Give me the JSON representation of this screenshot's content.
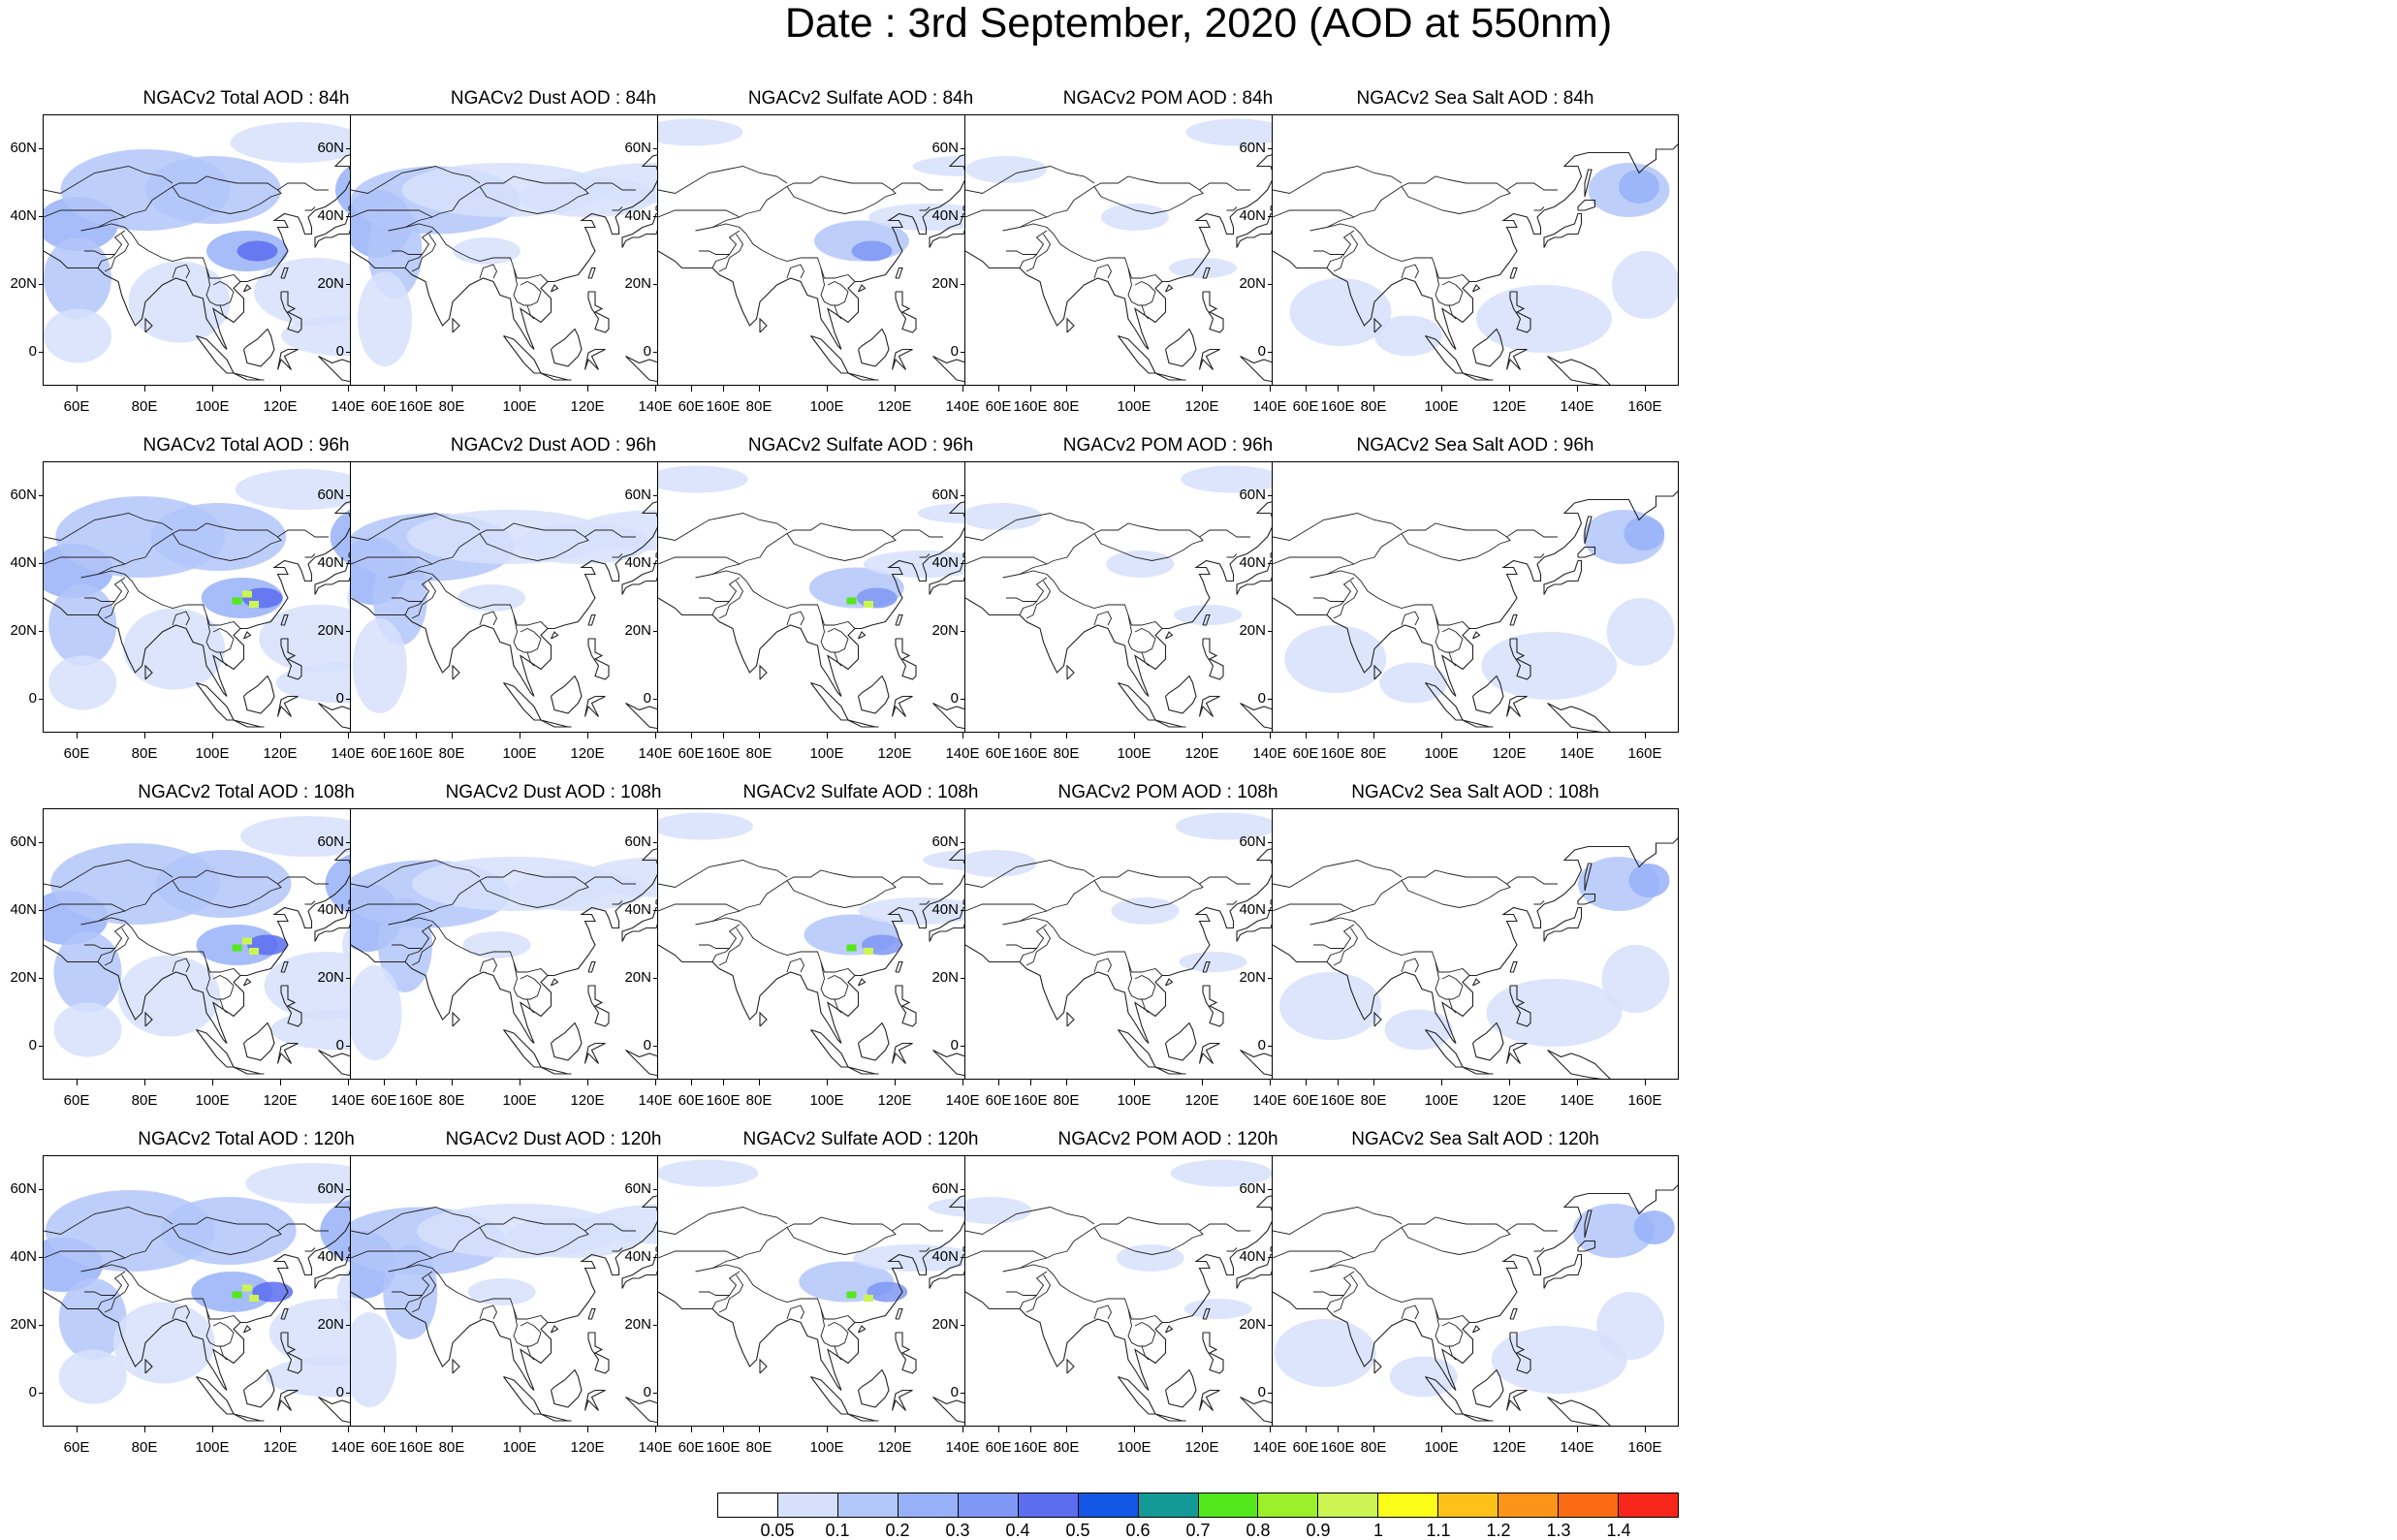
{
  "figure_title": "Date : 3rd September, 2020 (AOD at 550nm)",
  "panels": [
    {
      "title": "NGACv2 Total AOD : 84h",
      "species": "total",
      "hour": "84h"
    },
    {
      "title": "NGACv2 Dust AOD : 84h",
      "species": "dust",
      "hour": "84h"
    },
    {
      "title": "NGACv2 Sulfate AOD : 84h",
      "species": "sulfate",
      "hour": "84h"
    },
    {
      "title": "NGACv2 POM AOD : 84h",
      "species": "pom",
      "hour": "84h"
    },
    {
      "title": "NGACv2 Sea Salt AOD : 84h",
      "species": "seasalt",
      "hour": "84h"
    },
    {
      "title": "NGACv2 Total AOD : 96h",
      "species": "total",
      "hour": "96h"
    },
    {
      "title": "NGACv2 Dust AOD : 96h",
      "species": "dust",
      "hour": "96h"
    },
    {
      "title": "NGACv2 Sulfate AOD : 96h",
      "species": "sulfate",
      "hour": "96h"
    },
    {
      "title": "NGACv2 POM AOD : 96h",
      "species": "pom",
      "hour": "96h"
    },
    {
      "title": "NGACv2 Sea Salt AOD : 96h",
      "species": "seasalt",
      "hour": "96h"
    },
    {
      "title": "NGACv2 Total AOD : 108h",
      "species": "total",
      "hour": "108h"
    },
    {
      "title": "NGACv2 Dust AOD : 108h",
      "species": "dust",
      "hour": "108h"
    },
    {
      "title": "NGACv2 Sulfate AOD : 108h",
      "species": "sulfate",
      "hour": "108h"
    },
    {
      "title": "NGACv2 POM AOD : 108h",
      "species": "pom",
      "hour": "108h"
    },
    {
      "title": "NGACv2 Sea Salt AOD : 108h",
      "species": "seasalt",
      "hour": "108h"
    },
    {
      "title": "NGACv2 Total AOD : 120h",
      "species": "total",
      "hour": "120h"
    },
    {
      "title": "NGACv2 Dust AOD : 120h",
      "species": "dust",
      "hour": "120h"
    },
    {
      "title": "NGACv2 Sulfate AOD : 120h",
      "species": "sulfate",
      "hour": "120h"
    },
    {
      "title": "NGACv2 POM AOD : 120h",
      "species": "pom",
      "hour": "120h"
    },
    {
      "title": "NGACv2 Sea Salt  AOD : 120h",
      "species": "seasalt",
      "hour": "120h"
    }
  ],
  "axes": {
    "lat_ticks": [
      "60N",
      "40N",
      "20N",
      "0"
    ],
    "lat_values": [
      60,
      40,
      20,
      0
    ],
    "lon_ticks": [
      "60E",
      "80E",
      "100E",
      "120E",
      "140E",
      "160E"
    ],
    "lon_values": [
      60,
      80,
      100,
      120,
      140,
      160
    ],
    "lon_range": [
      50,
      170
    ],
    "lat_range": [
      -10,
      70
    ]
  },
  "colorbar": {
    "labels": [
      "0.05",
      "0.1",
      "0.2",
      "0.3",
      "0.4",
      "0.5",
      "0.6",
      "0.7",
      "0.8",
      "0.9",
      "1",
      "1.1",
      "1.2",
      "1.3",
      "1.4"
    ],
    "colors": [
      "#ffffff",
      "#d6e0fc",
      "#b3c6fa",
      "#97b1f8",
      "#7f97f5",
      "#5c6df0",
      "#1457e6",
      "#149a96",
      "#53e81b",
      "#9bf02a",
      "#ccf553",
      "#fdfd1a",
      "#fdc11a",
      "#fb9419",
      "#fa6b14",
      "#f6261b"
    ]
  }
}
